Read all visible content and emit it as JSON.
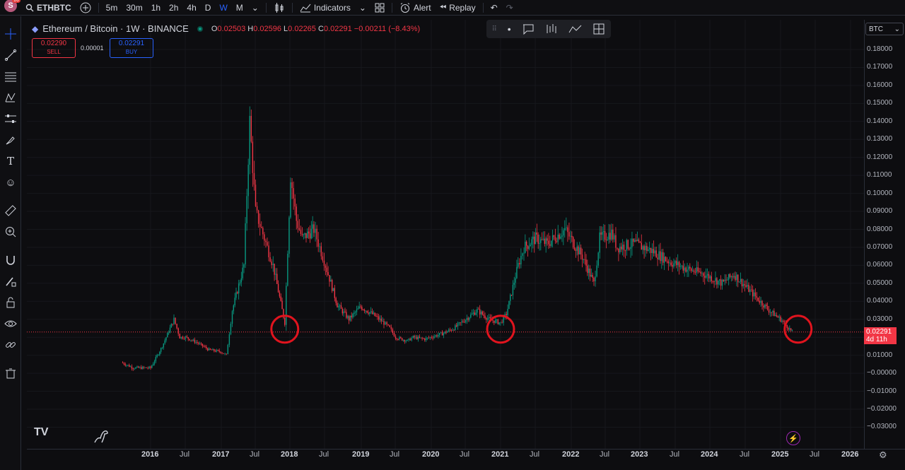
{
  "topbar": {
    "logo_letter": "S",
    "badge": "16",
    "symbol": "ETHBTC",
    "intervals": [
      "5m",
      "30m",
      "1h",
      "2h",
      "4h",
      "D",
      "W",
      "M"
    ],
    "active_interval": "W",
    "indicators": "Indicators",
    "alert": "Alert",
    "replay": "Replay"
  },
  "legend": {
    "title": "Ethereum / Bitcoin · 1W · BINANCE",
    "o_label": "O",
    "o": "0.02503",
    "h_label": "H",
    "h": "0.02596",
    "l_label": "L",
    "l": "0.02265",
    "c_label": "C",
    "c": "0.02291",
    "change": "−0.00211 (−8.43%)"
  },
  "trade": {
    "sell_price": "0.02290",
    "sell_label": "SELL",
    "spread": "0.00001",
    "buy_price": "0.02291",
    "buy_label": "BUY"
  },
  "axis": {
    "currency": "BTC",
    "price_tag_time": "4d 11h",
    "y_labels": [
      "0.18000",
      "0.17000",
      "0.16000",
      "0.15000",
      "0.14000",
      "0.13000",
      "0.12000",
      "0.11000",
      "0.10000",
      "0.09000",
      "0.08000",
      "0.07000",
      "0.06000",
      "0.05000",
      "0.04000",
      "0.03000",
      "0.02000",
      "0.01000",
      "−0.00000",
      "−0.01000",
      "−0.02000",
      "−0.03000"
    ],
    "x_labels": [
      "2016",
      "Jul",
      "2017",
      "Jul",
      "2018",
      "Jul",
      "2019",
      "Jul",
      "2020",
      "Jul",
      "2021",
      "Jul",
      "2022",
      "Jul",
      "2023",
      "Jul",
      "2024",
      "Jul",
      "2025",
      "Jul",
      "2026"
    ]
  },
  "colors": {
    "up": "#089981",
    "down": "#f23645",
    "circle": "#e0141e",
    "bg": "#0d0d10"
  },
  "chart_data": {
    "type": "candlestick",
    "title": "Ethereum / Bitcoin · 1W · BINANCE",
    "ylim": [
      -0.03,
      0.18
    ],
    "last_price": 0.02291,
    "x": [
      "2015-08",
      "2015-10",
      "2016-01",
      "2016-03",
      "2016-05",
      "2016-06",
      "2016-07",
      "2016-09",
      "2016-11",
      "2017-01",
      "2017-02",
      "2017-03",
      "2017-05",
      "2017-06",
      "2017-07",
      "2017-08",
      "2017-09",
      "2017-10",
      "2017-12",
      "2018-01",
      "2018-02",
      "2018-03",
      "2018-05",
      "2018-06",
      "2018-07",
      "2018-09",
      "2018-11",
      "2019-01",
      "2019-03",
      "2019-05",
      "2019-06",
      "2019-07",
      "2019-09",
      "2019-10",
      "2019-12",
      "2020-03",
      "2020-05",
      "2020-07",
      "2020-09",
      "2020-11",
      "2021-01",
      "2021-02",
      "2021-04",
      "2021-05",
      "2021-07",
      "2021-09",
      "2021-12",
      "2022-01",
      "2022-03",
      "2022-05",
      "2022-06",
      "2022-08",
      "2022-09",
      "2022-12",
      "2023-03",
      "2023-06",
      "2023-09",
      "2023-12",
      "2024-03",
      "2024-05",
      "2024-08",
      "2024-11",
      "2025-01",
      "2025-03"
    ],
    "close": [
      0.006,
      0.003,
      0.003,
      0.015,
      0.03,
      0.02,
      0.02,
      0.017,
      0.013,
      0.012,
      0.01,
      0.035,
      0.06,
      0.14,
      0.09,
      0.08,
      0.07,
      0.06,
      0.028,
      0.11,
      0.085,
      0.075,
      0.08,
      0.07,
      0.06,
      0.038,
      0.03,
      0.037,
      0.033,
      0.028,
      0.025,
      0.02,
      0.018,
      0.02,
      0.019,
      0.022,
      0.025,
      0.03,
      0.035,
      0.03,
      0.028,
      0.033,
      0.06,
      0.07,
      0.075,
      0.072,
      0.08,
      0.075,
      0.065,
      0.05,
      0.075,
      0.078,
      0.07,
      0.072,
      0.068,
      0.062,
      0.058,
      0.055,
      0.05,
      0.055,
      0.045,
      0.035,
      0.03,
      0.023
    ],
    "annotations": [
      "circle at 2017-12 low",
      "circle at 2021-01 low",
      "circle at 2025-03 current"
    ]
  }
}
